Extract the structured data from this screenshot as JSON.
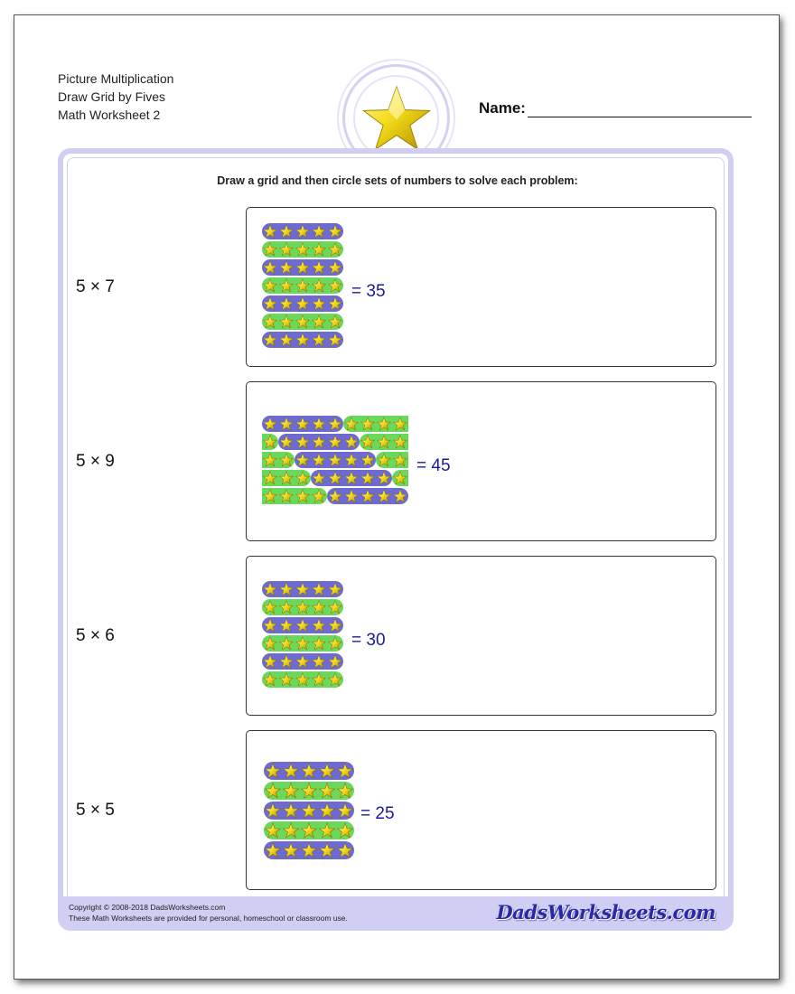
{
  "header": {
    "lines": [
      "Picture Multiplication",
      "Draw Grid by Fives",
      "Math Worksheet 2"
    ],
    "name_label": "Name:",
    "emblem": "star-icon"
  },
  "instructions": "Draw a grid and then circle sets of numbers to solve each problem:",
  "problems": [
    {
      "label": "5 × 7",
      "answer": "= 35",
      "rows": 7,
      "cols": 5,
      "layout": "rows"
    },
    {
      "label": "5 × 9",
      "answer": "= 45",
      "rows": 5,
      "cols": 9,
      "layout": "wrap"
    },
    {
      "label": "5 × 6",
      "answer": "= 30",
      "rows": 6,
      "cols": 5,
      "layout": "rows"
    },
    {
      "label": "5 × 5",
      "answer": "= 25",
      "rows": 5,
      "cols": 5,
      "layout": "rows"
    }
  ],
  "colors": {
    "purple_group": "#6d6bd1",
    "green_group": "#6ad85a",
    "star": "#f4dd1e",
    "answer_text": "#1a1a9c",
    "frame": "#d0cef2"
  },
  "footer": {
    "copyright": "Copyright © 2008-2018 DadsWorksheets.com",
    "notice": "These Math Worksheets are provided for personal, homeschool or classroom use.",
    "logo": "DadsWorksheets.com"
  }
}
